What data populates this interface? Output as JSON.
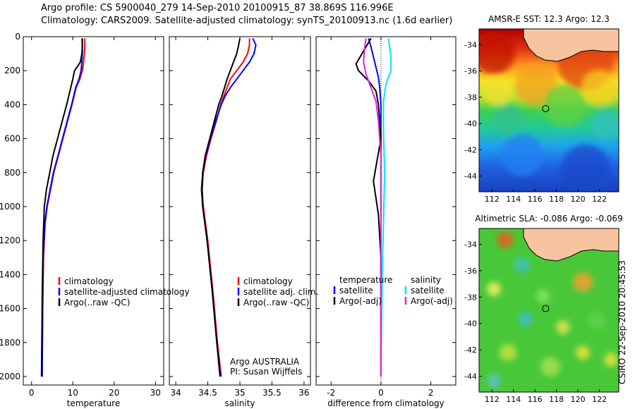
{
  "header": {
    "line1": "Argo profile: CS 5900040_279 14-Sep-2010 20100915_87 38.869S 116.996E",
    "line2": "Climatology: CARS2009. Satellite-adjusted climatology: synTS_20100913.nc (1.6d earlier)"
  },
  "credit": "CSIRO 22-Sep-2010 20:45:53",
  "colors": {
    "clim": "#ff0000",
    "sat": "#0000ff",
    "argo": "#000000",
    "sal_sat": "#00e5ee",
    "sal_argo": "#e020e0"
  },
  "chart_data": [
    {
      "type": "line",
      "name": "temperature",
      "xlabel": "temperature",
      "xlim": [
        -2,
        32
      ],
      "ylim": [
        2050,
        0
      ],
      "xticks": [
        "0",
        "10",
        "20",
        "30"
      ],
      "xtick_values": [
        0,
        10,
        20,
        30
      ],
      "yticks": [
        "0",
        "200",
        "400",
        "600",
        "800",
        "1000",
        "1200",
        "1400",
        "1600",
        "1800",
        "2000"
      ],
      "ytick_values": [
        0,
        200,
        400,
        600,
        800,
        1000,
        1200,
        1400,
        1600,
        1800,
        2000
      ],
      "legend": [
        "climatology",
        "satellite-adjusted climatology",
        "Argo(..raw -QC)"
      ],
      "series": [
        {
          "name": "climatology",
          "color": "clim",
          "x": [
            12.9,
            12.9,
            12.8,
            12.6,
            12.3,
            11.7,
            10.8,
            9.8,
            8.7,
            7.6,
            6.5,
            5.4,
            4.6,
            3.8,
            3.3,
            2.9,
            2.7,
            2.6
          ],
          "y": [
            10,
            50,
            100,
            150,
            200,
            250,
            300,
            400,
            500,
            600,
            700,
            800,
            900,
            1000,
            1100,
            1300,
            1600,
            1900
          ]
        },
        {
          "name": "satellite-adjusted climatology",
          "color": "sat",
          "x": [
            12.2,
            12.3,
            12.3,
            12.2,
            12.0,
            11.5,
            10.7,
            9.7,
            8.6,
            7.5,
            6.4,
            5.3,
            4.5,
            3.7,
            3.2,
            2.8,
            2.7,
            2.6,
            2.6
          ],
          "y": [
            10,
            50,
            100,
            150,
            200,
            250,
            300,
            400,
            500,
            600,
            700,
            800,
            900,
            1000,
            1100,
            1300,
            1600,
            1900,
            2000
          ]
        },
        {
          "name": "Argo(..raw -QC)",
          "color": "argo",
          "x": [
            12.3,
            12.3,
            12.2,
            11.8,
            11.0,
            10.4,
            10.0,
            9.5,
            8.5,
            7.4,
            6.3,
            5.2,
            4.4,
            3.6,
            3.1,
            2.8,
            2.6,
            2.5,
            2.4
          ],
          "y": [
            10,
            50,
            100,
            150,
            180,
            200,
            250,
            300,
            400,
            500,
            600,
            700,
            800,
            900,
            1000,
            1200,
            1500,
            1800,
            2000
          ]
        }
      ]
    },
    {
      "type": "line",
      "name": "salinity",
      "xlabel": "salinity",
      "xlim": [
        33.9,
        36.1
      ],
      "ylim": [
        2050,
        0
      ],
      "xticks": [
        "34",
        "34.5",
        "35",
        "35.5",
        "36"
      ],
      "xtick_values": [
        34,
        34.5,
        35,
        35.5,
        36
      ],
      "legend": [
        "climatology",
        "satellite adj. clim.",
        "Argo(..raw -QC)"
      ],
      "annotation": [
        "Argo AUSTRALIA",
        "PI: Susan Wijffels"
      ],
      "series": [
        {
          "name": "climatology",
          "color": "clim",
          "x": [
            35.15,
            35.15,
            35.12,
            35.05,
            34.95,
            34.85,
            34.8,
            34.75,
            34.7,
            34.63,
            34.55,
            34.48,
            34.43,
            34.41,
            34.43,
            34.5,
            34.58,
            34.65,
            34.71
          ],
          "y": [
            10,
            50,
            100,
            150,
            200,
            250,
            300,
            350,
            400,
            500,
            600,
            700,
            800,
            900,
            1000,
            1200,
            1500,
            1800,
            2000
          ]
        },
        {
          "name": "satellite adj. clim.",
          "color": "sat",
          "x": [
            35.2,
            35.25,
            35.22,
            35.15,
            35.05,
            34.95,
            34.85,
            34.77,
            34.71,
            34.62,
            34.54,
            34.47,
            34.42,
            34.4,
            34.42,
            34.49,
            34.57,
            34.64,
            34.7
          ],
          "y": [
            10,
            50,
            100,
            150,
            200,
            250,
            300,
            350,
            400,
            500,
            600,
            700,
            800,
            900,
            1000,
            1200,
            1500,
            1800,
            2000
          ]
        },
        {
          "name": "Argo(..raw -QC)",
          "color": "argo",
          "x": [
            35.0,
            34.98,
            34.95,
            34.9,
            34.85,
            34.8,
            34.76,
            34.72,
            34.67,
            34.6,
            34.53,
            34.46,
            34.42,
            34.41,
            34.42,
            34.49,
            34.57,
            34.64,
            34.69
          ],
          "y": [
            10,
            50,
            100,
            150,
            200,
            250,
            300,
            350,
            400,
            500,
            600,
            700,
            800,
            900,
            1000,
            1200,
            1500,
            1800,
            2000
          ]
        }
      ]
    },
    {
      "type": "line",
      "name": "difference",
      "xlabel": "difference from climatology",
      "xlim": [
        -2.6,
        3.0
      ],
      "ylim": [
        2050,
        0
      ],
      "xticks": [
        "-2",
        "0",
        "2"
      ],
      "xtick_values": [
        -2,
        0,
        2
      ],
      "legend_groups": [
        {
          "title": "temperature",
          "items": [
            "satellite",
            "Argo(-adj)"
          ]
        },
        {
          "title": "salinity",
          "items": [
            "satellite",
            "Argo(-adj)"
          ]
        }
      ],
      "series": [
        {
          "name": "temperature satellite",
          "color": "sat",
          "x": [
            -0.5,
            -0.4,
            -0.3,
            -0.2,
            -0.1,
            -0.05,
            0,
            0,
            0,
            0,
            0
          ],
          "y": [
            10,
            60,
            120,
            180,
            240,
            300,
            400,
            600,
            900,
            1300,
            2000
          ]
        },
        {
          "name": "temperature Argo(-adj)",
          "color": "argo",
          "x": [
            -0.4,
            -0.6,
            -1.0,
            -0.9,
            -0.5,
            -0.2,
            -0.1,
            0,
            -0.3,
            -0.1,
            0,
            0
          ],
          "y": [
            10,
            60,
            160,
            200,
            260,
            320,
            400,
            600,
            850,
            1050,
            1300,
            2000
          ]
        },
        {
          "name": "salinity satellite",
          "color": "sal_sat",
          "x": [
            0.3,
            0.35,
            0.4,
            0.4,
            0.2,
            0.1,
            0.1,
            0.15,
            0.1,
            0.05,
            0
          ],
          "y": [
            10,
            60,
            120,
            200,
            280,
            380,
            550,
            800,
            1100,
            1400,
            2000
          ]
        },
        {
          "name": "salinity Argo(-adj)",
          "color": "sal_argo",
          "x": [
            -0.6,
            -0.65,
            -0.7,
            -0.6,
            -0.4,
            -0.2,
            -0.1,
            0,
            0
          ],
          "y": [
            10,
            60,
            150,
            220,
            300,
            380,
            500,
            700,
            2000
          ]
        }
      ]
    },
    {
      "type": "heatmap",
      "name": "sst-map",
      "title": "AMSR-E SST: 12.3 Argo: 12.3",
      "xticks": [
        "112",
        "114",
        "116",
        "118",
        "120",
        "122"
      ],
      "xtick_values": [
        112,
        114,
        116,
        118,
        120,
        122
      ],
      "yticks": [
        "-34",
        "-36",
        "-38",
        "-40",
        "-42",
        "-44"
      ],
      "ytick_values": [
        -34,
        -36,
        -38,
        -40,
        -42,
        -44
      ],
      "xlim": [
        110.8,
        123.8
      ],
      "ylim": [
        -45.2,
        -32.8
      ],
      "argo_position": [
        116.996,
        -38.869
      ]
    },
    {
      "type": "heatmap",
      "name": "sla-map",
      "title": "Altimetric SLA: -0.086 Argo: -0.069",
      "xticks": [
        "112",
        "114",
        "116",
        "118",
        "120",
        "122"
      ],
      "xtick_values": [
        112,
        114,
        116,
        118,
        120,
        122
      ],
      "yticks": [
        "-34",
        "-36",
        "-38",
        "-40",
        "-42",
        "-44"
      ],
      "ytick_values": [
        -34,
        -36,
        -38,
        -40,
        -42,
        -44
      ],
      "xlim": [
        110.8,
        123.8
      ],
      "ylim": [
        -45.2,
        -32.8
      ],
      "argo_position": [
        116.996,
        -38.869
      ]
    }
  ]
}
